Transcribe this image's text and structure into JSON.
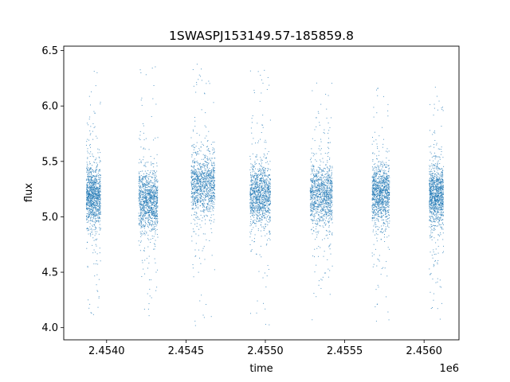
{
  "chart_data": {
    "type": "scatter",
    "title": "1SWASPJ153149.57-185859.8",
    "xlabel": "time",
    "ylabel": "flux",
    "x_offset_label": "1e6",
    "xlim": [
      2.45373,
      2.45622
    ],
    "ylim": [
      3.89,
      6.54
    ],
    "x_ticks": [
      2.454,
      2.4545,
      2.455,
      2.4555,
      2.456
    ],
    "x_tick_labels": [
      "2.4540",
      "2.4545",
      "2.4550",
      "2.4555",
      "2.4560"
    ],
    "y_ticks": [
      4.0,
      4.5,
      5.0,
      5.5,
      6.0,
      6.5
    ],
    "y_tick_labels": [
      "4.0",
      "4.5",
      "5.0",
      "5.5",
      "6.0",
      "6.5"
    ],
    "grid": false,
    "legend": "none",
    "marker_color": "#1f77b4",
    "season_count": 7,
    "seasons": [
      {
        "x_start": 2.45387,
        "x_end": 2.45396,
        "flux_center": 5.2,
        "flux_min": 4.08,
        "flux_max": 6.32
      },
      {
        "x_start": 2.4542,
        "x_end": 2.45432,
        "flux_center": 5.15,
        "flux_min": 4.01,
        "flux_max": 6.38
      },
      {
        "x_start": 2.45453,
        "x_end": 2.45468,
        "flux_center": 5.3,
        "flux_min": 4.0,
        "flux_max": 6.39
      },
      {
        "x_start": 2.4549,
        "x_end": 2.45503,
        "flux_center": 5.2,
        "flux_min": 4.01,
        "flux_max": 6.4
      },
      {
        "x_start": 2.45528,
        "x_end": 2.45542,
        "flux_center": 5.2,
        "flux_min": 4.0,
        "flux_max": 6.33
      },
      {
        "x_start": 2.45567,
        "x_end": 2.45578,
        "flux_center": 5.2,
        "flux_min": 4.03,
        "flux_max": 6.18
      },
      {
        "x_start": 2.45603,
        "x_end": 2.45612,
        "flux_center": 5.2,
        "flux_min": 4.03,
        "flux_max": 6.26
      }
    ]
  }
}
